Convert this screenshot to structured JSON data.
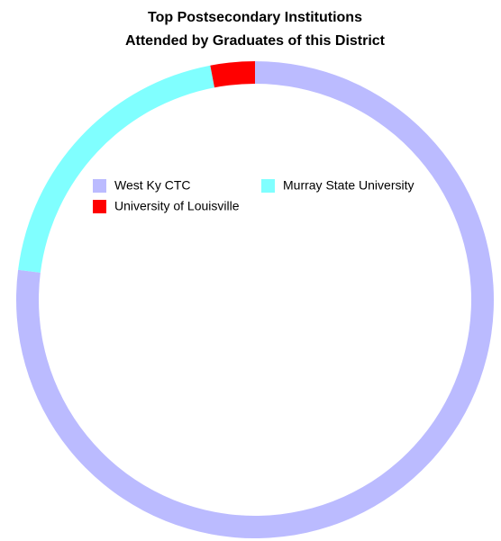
{
  "chart_data": {
    "type": "donut",
    "title": [
      "Top Postsecondary Institutions",
      "Attended by Graduates of this District"
    ],
    "categories": [
      "West Ky CTC",
      "Murray State University",
      "University of Louisville"
    ],
    "values": [
      77,
      20,
      3
    ],
    "colors": [
      "#bbbbff",
      "#80ffff",
      "#ff0000"
    ]
  }
}
